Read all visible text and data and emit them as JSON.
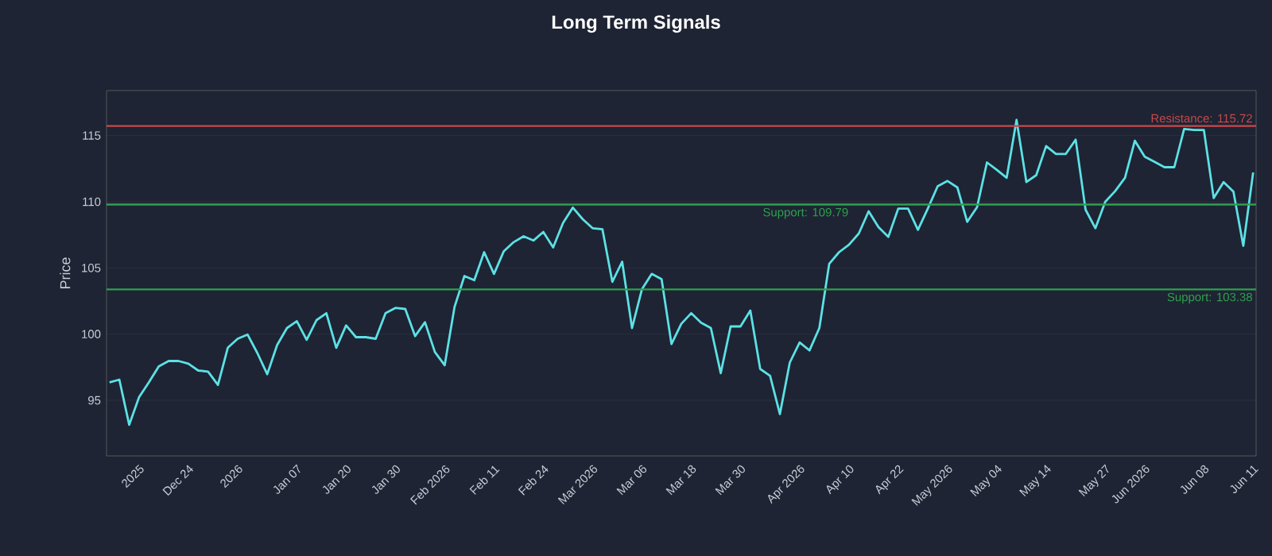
{
  "chart_data": {
    "type": "line",
    "title": "Long Term Signals",
    "ylabel": "Price",
    "categories": [
      null,
      null,
      null,
      "2025",
      null,
      null,
      null,
      null,
      "Dec 24",
      null,
      null,
      null,
      null,
      "2026",
      null,
      null,
      null,
      null,
      null,
      "Jan 07",
      null,
      null,
      null,
      null,
      "Jan 20",
      null,
      null,
      null,
      null,
      "Jan 30",
      null,
      null,
      null,
      null,
      "Feb 2026",
      null,
      null,
      null,
      null,
      "Feb 11",
      null,
      null,
      null,
      null,
      "Feb 24",
      null,
      null,
      null,
      null,
      "Mar 2026",
      null,
      null,
      null,
      null,
      "Mar 06",
      null,
      null,
      null,
      null,
      "Mar 18",
      null,
      null,
      null,
      null,
      "Mar 30",
      null,
      null,
      null,
      null,
      null,
      "Apr 2026",
      null,
      null,
      null,
      null,
      "Apr 10",
      null,
      null,
      null,
      null,
      "Apr 22",
      null,
      null,
      null,
      null,
      "May 2026",
      null,
      null,
      null,
      null,
      "May 04",
      null,
      null,
      null,
      null,
      "May 14",
      null,
      null,
      null,
      null,
      null,
      "May 27",
      null,
      null,
      null,
      "Jun 2026",
      null,
      null,
      null,
      null,
      null,
      "Jun 08",
      null,
      null,
      null,
      null,
      "Jun 11"
    ],
    "series": [
      {
        "color": "#5ce1e6",
        "values": [
          96.36,
          96.56,
          93.15,
          95.24,
          96.36,
          97.57,
          97.97,
          97.97,
          97.77,
          97.25,
          97.17,
          96.16,
          98.97,
          99.65,
          99.97,
          98.57,
          96.97,
          99.17,
          100.46,
          100.98,
          99.57,
          101.06,
          101.58,
          98.97,
          100.66,
          99.77,
          99.77,
          99.65,
          101.58,
          101.98,
          101.9,
          99.85,
          100.9,
          98.65,
          97.65,
          102.06,
          104.39,
          104.07,
          106.19,
          104.55,
          106.27,
          106.95,
          107.39,
          107.07,
          107.72,
          106.55,
          108.4,
          109.56,
          108.68,
          108.0,
          107.92,
          103.95,
          105.47,
          100.46,
          103.38,
          104.55,
          104.15,
          99.25,
          100.78,
          101.58,
          100.86,
          100.46,
          97.05,
          100.58,
          100.58,
          101.78,
          97.37,
          96.85,
          93.96,
          97.85,
          99.37,
          98.77,
          100.46,
          105.31,
          106.19,
          106.75,
          107.6,
          109.28,
          108.08,
          107.35,
          109.48,
          109.48,
          107.88,
          109.48,
          111.17,
          111.57,
          111.08,
          108.48,
          109.6,
          112.97,
          112.41,
          111.81,
          116.18,
          111.49,
          112.01,
          114.21,
          113.61,
          113.61,
          114.69,
          109.4,
          108.0,
          110.0,
          110.8,
          111.81,
          114.61,
          113.41,
          113.01,
          112.61,
          112.61,
          115.5,
          115.42,
          115.42,
          110.28,
          111.49,
          110.76,
          106.67,
          112.21
        ]
      }
    ],
    "ylim": [
      90.8,
      118.4
    ],
    "yticks": [
      95,
      100,
      105,
      110,
      115
    ],
    "grid": "y",
    "ref_lines": [
      {
        "axis": "y",
        "value": 115.72,
        "label": "Resistance: 115.72",
        "color": "#c8484c"
      },
      {
        "axis": "y",
        "value": 109.79,
        "label": "Support: 109.79",
        "color": "#2ea04f"
      },
      {
        "axis": "y",
        "value": 103.38,
        "label": "Support: 103.38",
        "color": "#2ea04f"
      }
    ]
  }
}
